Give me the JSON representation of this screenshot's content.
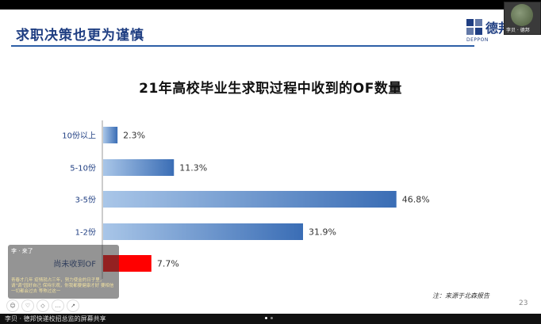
{
  "slide": {
    "title": "求职决策也更为谨慎",
    "logo_text": "德邦",
    "logo_sub": "DEPPON",
    "note": "注：来源于北森报告",
    "page_number": "23"
  },
  "camera_tile": {
    "name": "李贝 · 德邦"
  },
  "chat": {
    "top_text": "李 · 来了",
    "message": "青春才几年 疫情就占三年，努力使金的日子里，请\"调\"园好自己 保持乐观，你我都要健康才好 要相信一切都会过去 等熬过这一"
  },
  "bottom_bar": {
    "share_text": "李贝 · 德邦快递校招总监的屏幕共享"
  },
  "colors": {
    "accent": "#1f3e82",
    "bar_blue_light": "#a9c6e8",
    "bar_blue_dark": "#3a6db5",
    "bar_red": "#ff0000"
  },
  "chart_data": {
    "type": "bar",
    "orientation": "horizontal",
    "title": "21年高校毕业生求职过程中收到的OF数量",
    "categories": [
      "10份以上",
      "5-10份",
      "3-5份",
      "1-2份",
      "尚未收到OF"
    ],
    "values": [
      2.3,
      11.3,
      46.8,
      31.9,
      7.7
    ],
    "value_labels": [
      "2.3%",
      "11.3%",
      "46.8%",
      "31.9%",
      "7.7%"
    ],
    "highlight_index": 4,
    "xlim": [
      0,
      50
    ]
  }
}
